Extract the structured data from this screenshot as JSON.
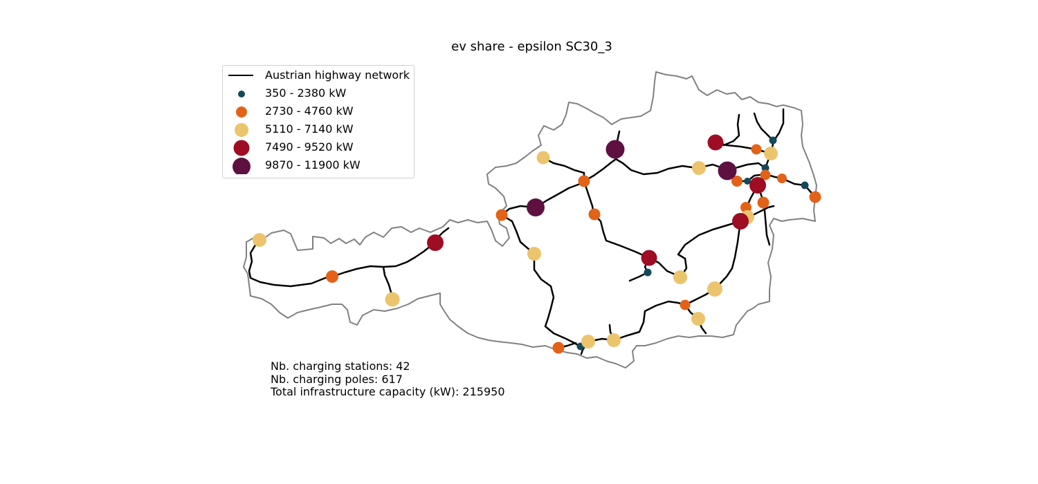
{
  "title": "ev share - epsilon SC30_3",
  "legend": {
    "network_label": "Austrian highway network",
    "classes": [
      {
        "label": "350 - 2380 kW",
        "color": "#124a5a",
        "size": "small"
      },
      {
        "label": "2730 - 4760 kW",
        "color": "#e36218",
        "size": "medium"
      },
      {
        "label": "5110 - 7140 kW",
        "color": "#ecc46d",
        "size": "large"
      },
      {
        "label": "7490 - 9520 kW",
        "color": "#9e0d23",
        "size": "xlarge"
      },
      {
        "label": "9870 - 11900 kW",
        "color": "#5e1041",
        "size": "xxlarge"
      }
    ]
  },
  "colors": {
    "border": "#808080",
    "highway": "#000000"
  },
  "stats": {
    "stations": "Nb. charging stations: 42",
    "poles": "Nb. charging poles: 617",
    "capacity": "Total infrastructure capacity (kW): 215950"
  }
}
